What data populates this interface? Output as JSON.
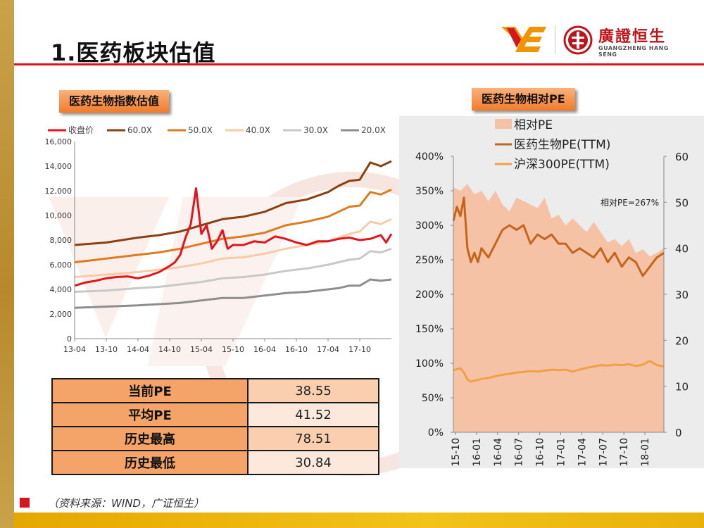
{
  "header": {
    "title": "1.医药板块估值",
    "logo_name": "廣證恒生",
    "logo_sub": "GUANGZHENG HANG SENG"
  },
  "colors": {
    "accent_red": "#d2171e",
    "gold": "#c9a24a",
    "label_orange": "#f17b2b",
    "relative_pe_fill": "#f6c2a5"
  },
  "left_section": {
    "label": "医药生物指数估值"
  },
  "right_section": {
    "label": "医药生物相对PE"
  },
  "stats": [
    {
      "label": "当前PE",
      "value": "38.55"
    },
    {
      "label": "平均PE",
      "value": "41.52"
    },
    {
      "label": "历史最高",
      "value": "78.51"
    },
    {
      "label": "历史最低",
      "value": "30.84"
    }
  ],
  "footer": {
    "source": "（资料来源：WIND，广证恒生）"
  },
  "chart_data": [
    {
      "type": "line",
      "title": "",
      "xlabel": "",
      "ylabel": "",
      "ylim": [
        0,
        16000
      ],
      "yticks": [
        "16,000",
        "14,000",
        "12,000",
        "10,000",
        "8,000",
        "6,000",
        "4,000",
        "2,000",
        "0"
      ],
      "x_ticks": [
        "13-04",
        "13-10",
        "14-04",
        "14-10",
        "15-04",
        "15-10",
        "16-04",
        "16-10",
        "17-04",
        "17-10"
      ],
      "x_range": [
        0,
        60
      ],
      "legend_position": "top",
      "series": [
        {
          "name": "收盘价",
          "color": "#e3141b",
          "x": [
            0,
            2,
            4,
            6,
            8,
            10,
            12,
            14,
            16,
            18,
            19,
            20,
            21,
            22,
            23,
            24,
            25,
            26,
            27,
            28,
            29,
            30,
            32,
            34,
            36,
            38,
            40,
            42,
            44,
            46,
            48,
            50,
            52,
            54,
            56,
            58,
            59,
            60
          ],
          "values": [
            4300,
            4550,
            4700,
            4900,
            5000,
            5050,
            4900,
            5100,
            5400,
            5900,
            6200,
            6800,
            8200,
            9300,
            12200,
            8500,
            9200,
            7300,
            7900,
            8800,
            7300,
            7600,
            7600,
            7900,
            7800,
            8300,
            8100,
            7800,
            7600,
            7900,
            7900,
            8100,
            8200,
            8000,
            8100,
            8400,
            7800,
            8500
          ]
        },
        {
          "name": "60.0X",
          "color": "#8b4010",
          "x": [
            0,
            6,
            12,
            16,
            20,
            24,
            28,
            32,
            36,
            40,
            44,
            48,
            50,
            52,
            54,
            56,
            58,
            60
          ],
          "values": [
            7600,
            7800,
            8200,
            8400,
            8700,
            9200,
            9700,
            9900,
            10300,
            11000,
            11300,
            11900,
            12400,
            12800,
            12900,
            14300,
            14000,
            14400
          ]
        },
        {
          "name": "50.0X",
          "color": "#e07a1e",
          "x": [
            0,
            6,
            12,
            16,
            20,
            24,
            28,
            32,
            36,
            40,
            44,
            48,
            50,
            52,
            54,
            56,
            58,
            60
          ],
          "values": [
            6200,
            6500,
            6800,
            7000,
            7300,
            7700,
            8100,
            8300,
            8600,
            9200,
            9500,
            9900,
            10300,
            10700,
            10800,
            11900,
            11700,
            12100
          ]
        },
        {
          "name": "40.0X",
          "color": "#f7cba6",
          "x": [
            0,
            6,
            12,
            16,
            20,
            24,
            28,
            32,
            36,
            40,
            44,
            48,
            50,
            52,
            54,
            56,
            58,
            60
          ],
          "values": [
            5000,
            5200,
            5400,
            5600,
            5800,
            6100,
            6500,
            6600,
            6900,
            7300,
            7600,
            7900,
            8200,
            8500,
            8700,
            9500,
            9300,
            9700
          ]
        },
        {
          "name": "30.0X",
          "color": "#c8c8c8",
          "x": [
            0,
            6,
            12,
            16,
            20,
            24,
            28,
            32,
            36,
            40,
            44,
            48,
            50,
            52,
            54,
            56,
            58,
            60
          ],
          "values": [
            3800,
            3900,
            4100,
            4200,
            4400,
            4600,
            4900,
            5000,
            5200,
            5500,
            5700,
            6000,
            6200,
            6400,
            6500,
            7100,
            7000,
            7300
          ]
        },
        {
          "name": "20.0X",
          "color": "#8e8e8e",
          "x": [
            0,
            6,
            12,
            16,
            20,
            24,
            28,
            32,
            36,
            40,
            44,
            48,
            50,
            52,
            54,
            56,
            58,
            60
          ],
          "values": [
            2500,
            2600,
            2700,
            2800,
            2900,
            3100,
            3300,
            3300,
            3500,
            3700,
            3800,
            4000,
            4100,
            4300,
            4300,
            4800,
            4700,
            4800
          ]
        }
      ]
    },
    {
      "type": "area",
      "title": "",
      "xlabel": "",
      "ylabel": "",
      "x_ticks": [
        "15-10",
        "16-01",
        "16-04",
        "16-07",
        "16-10",
        "17-01",
        "17-04",
        "17-07",
        "17-10",
        "18-01"
      ],
      "x_range": [
        0,
        30
      ],
      "ylim": [
        0,
        4
      ],
      "yticks_left": [
        "400%",
        "350%",
        "300%",
        "250%",
        "200%",
        "150%",
        "100%",
        "50%",
        "0%"
      ],
      "y2lim": [
        0,
        60
      ],
      "yticks_right": [
        "60",
        "50",
        "40",
        "30",
        "20",
        "10",
        "0"
      ],
      "legend_position": "top-left",
      "annotation": "相对PE=267%",
      "series": [
        {
          "name": "相对PE",
          "axis": "left",
          "color": "#f6c2a5",
          "x": [
            0,
            1,
            2,
            3,
            4,
            5,
            6,
            7,
            8,
            9,
            10,
            11,
            12,
            13,
            14,
            15,
            16,
            17,
            18,
            19,
            20,
            21,
            22,
            23,
            24,
            25,
            26,
            27,
            28,
            29,
            30
          ],
          "values": [
            3.55,
            3.5,
            3.6,
            3.45,
            3.5,
            3.35,
            3.5,
            3.3,
            3.2,
            3.4,
            3.35,
            3.3,
            3.25,
            3.4,
            3.1,
            3.15,
            3.0,
            3.1,
            3.0,
            2.9,
            3.05,
            2.9,
            2.75,
            2.8,
            2.7,
            2.8,
            2.6,
            2.65,
            2.55,
            2.6,
            2.67
          ]
        },
        {
          "name": "医药生物PE(TTM)",
          "axis": "right",
          "color": "#c5641c",
          "x": [
            0,
            0.5,
            1,
            1.5,
            2,
            2.5,
            3,
            3.5,
            4,
            5,
            6,
            7,
            8,
            9,
            10,
            11,
            12,
            13,
            14,
            15,
            16,
            17,
            18,
            19,
            20,
            21,
            22,
            23,
            24,
            25,
            26,
            27,
            28,
            29,
            30
          ],
          "values": [
            46,
            49,
            47,
            51,
            40,
            37,
            39,
            37,
            40,
            38,
            41,
            44,
            45,
            44,
            45,
            41,
            43,
            42,
            43,
            41,
            41,
            39,
            40,
            39,
            38,
            40,
            37,
            39,
            36,
            38,
            37,
            34,
            36,
            38,
            39
          ]
        },
        {
          "name": "沪深300PE(TTM)",
          "axis": "right",
          "color": "#f29f4a",
          "x": [
            0,
            1,
            1.5,
            2,
            2.5,
            3,
            4,
            5,
            6,
            7,
            8,
            9,
            10,
            11,
            12,
            13,
            14,
            15,
            16,
            17,
            18,
            19,
            20,
            21,
            22,
            23,
            24,
            25,
            26,
            27,
            28,
            29,
            30
          ],
          "values": [
            13.5,
            13.9,
            13.0,
            11.5,
            11.0,
            11.2,
            11.6,
            11.8,
            12.2,
            12.5,
            12.7,
            13.0,
            13.1,
            13.3,
            13.2,
            13.4,
            13.6,
            13.5,
            13.6,
            13.2,
            13.6,
            14.0,
            14.3,
            14.6,
            14.5,
            14.7,
            14.6,
            14.8,
            14.4,
            14.7,
            15.5,
            14.6,
            14.3
          ]
        }
      ]
    }
  ]
}
